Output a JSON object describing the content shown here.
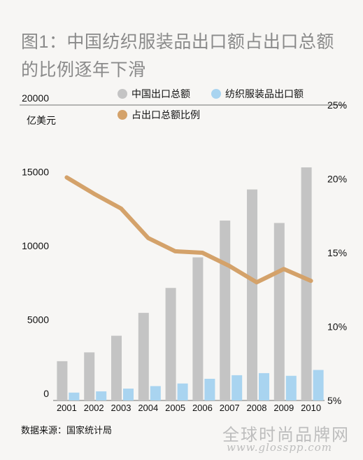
{
  "title": "图1：中国纺织服装品出口额占出口总额的比例逐年下滑",
  "legend": {
    "total_exports": "中国出口总额",
    "textile_exports": "纺织服装品出口额",
    "ratio": "占出口总额比例"
  },
  "source": "数据来源：国家统计局",
  "watermark": {
    "line1": "全球时尚品牌网",
    "line2": "www.glosspp.com"
  },
  "colors": {
    "total_bar": "#c4c4c4",
    "textile_bar": "#a9d4f0",
    "ratio_line": "#d4a26a"
  },
  "chart_data": {
    "type": "bar",
    "categories": [
      "2001",
      "2002",
      "2003",
      "2004",
      "2005",
      "2006",
      "2007",
      "2008",
      "2009",
      "2010"
    ],
    "series": [
      {
        "name": "中国出口总额",
        "axis": "left",
        "values": [
          2660,
          3256,
          4382,
          5933,
          7620,
          9689,
          12178,
          14285,
          12016,
          15779
        ]
      },
      {
        "name": "纺织服装品出口额",
        "axis": "left",
        "values": [
          533,
          618,
          804,
          974,
          1150,
          1470,
          1712,
          1852,
          1671,
          2065
        ]
      },
      {
        "name": "占出口总额比例",
        "type": "line",
        "axis": "right",
        "values": [
          20.1,
          19.0,
          18.0,
          16.0,
          15.1,
          15.0,
          14.1,
          13.0,
          13.9,
          13.1
        ]
      }
    ],
    "ylabel": "亿美元",
    "ylim": [
      0,
      20000
    ],
    "yticks": [
      0,
      5000,
      10000,
      15000,
      20000
    ],
    "ytick_labels": [
      "0",
      "5000",
      "10000",
      "15000",
      "20000"
    ],
    "y2lim": [
      5,
      25
    ],
    "y2ticks": [
      5,
      10,
      15,
      20,
      25
    ],
    "y2tick_labels": [
      "5%",
      "10%",
      "15%",
      "20%",
      "25%"
    ],
    "grid": false
  }
}
